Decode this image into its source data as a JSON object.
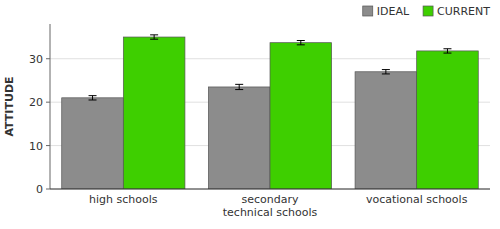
{
  "chart_data": {
    "type": "bar",
    "categories": [
      "high schools",
      "secondary\ntechnical schools",
      "vocational schools"
    ],
    "series": [
      {
        "name": "IDEAL",
        "color": "#8c8c8c",
        "values": [
          21.0,
          23.5,
          27.0
        ],
        "errors": [
          0.5,
          0.6,
          0.5
        ]
      },
      {
        "name": "CURRENT",
        "color": "#3ecf00",
        "values": [
          35.0,
          33.7,
          31.8
        ],
        "errors": [
          0.5,
          0.5,
          0.5
        ]
      }
    ],
    "ylim": [
      0,
      38
    ],
    "yticks": [
      0,
      10,
      20,
      30
    ],
    "ylabel": "ATTITUDE",
    "grid": true,
    "legend": "upper right"
  }
}
